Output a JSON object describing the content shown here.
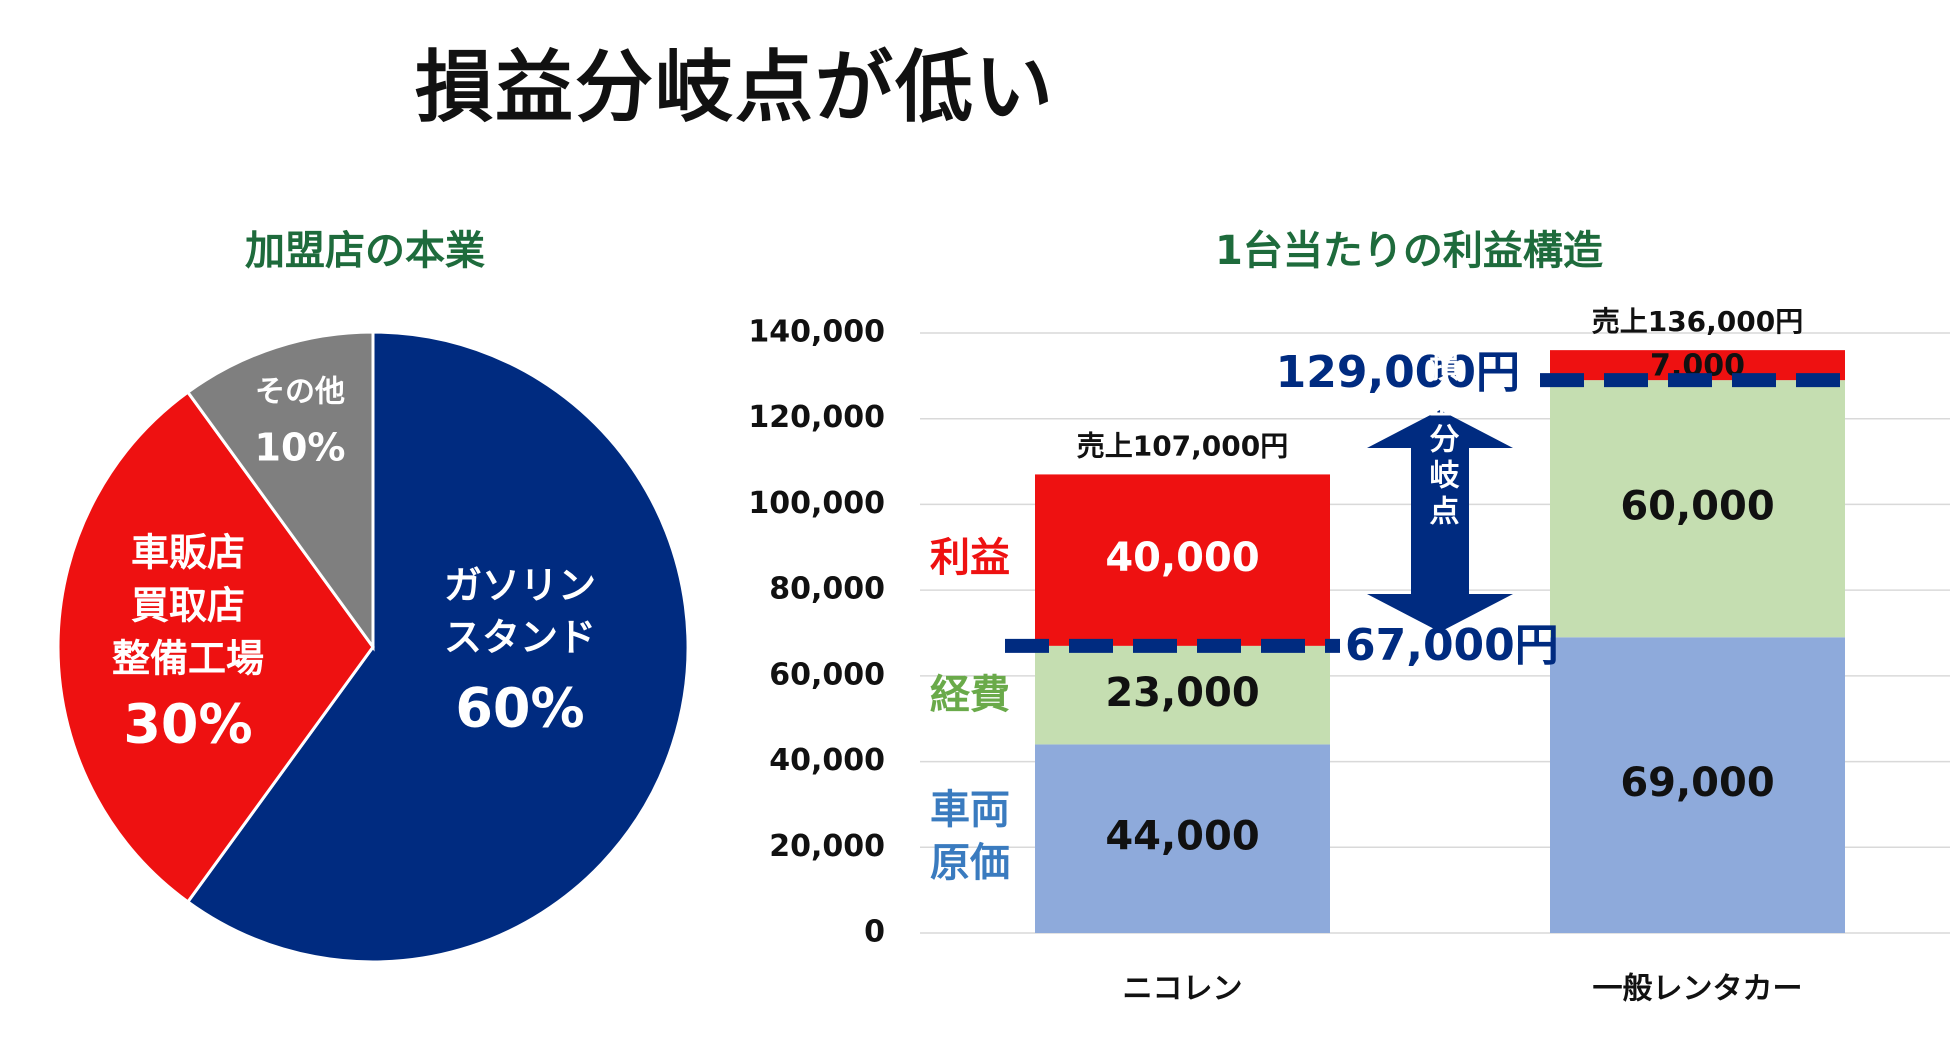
{
  "title": "損益分岐点が低い",
  "colors": {
    "navy": "#002b80",
    "red": "#ee1111",
    "gray": "#7f7f7f",
    "green": "#c5deb1",
    "blue": "#8eaadb",
    "title_green": "#1e6b3c",
    "label_green": "#6aaa4a",
    "label_blue": "#3a7bbf"
  },
  "chart_data": [
    {
      "type": "pie",
      "title": "加盟店の本業",
      "slices": [
        {
          "name_lines": [
            "ガソリン",
            "スタンド"
          ],
          "pct_label": "60%",
          "value": 60,
          "color": "#002b80"
        },
        {
          "name_lines": [
            "車販店",
            "買取店",
            "整備工場"
          ],
          "pct_label": "30%",
          "value": 30,
          "color": "#ee1111"
        },
        {
          "name_lines": [
            "その他"
          ],
          "pct_label": "10%",
          "value": 10,
          "color": "#7f7f7f"
        }
      ]
    },
    {
      "type": "bar",
      "stacked": true,
      "title": "1台当たりの利益構造",
      "categories": [
        "ニコレン",
        "一般レンタカー"
      ],
      "y_ticks": [
        0,
        20000,
        40000,
        60000,
        80000,
        100000,
        120000,
        140000
      ],
      "y_tick_labels": [
        "0",
        "20,000",
        "40,000",
        "60,000",
        "80,000",
        "100,000",
        "120,000",
        "140,000"
      ],
      "ylim": [
        0,
        140000
      ],
      "grid": true,
      "series": [
        {
          "name_lines": [
            "車両",
            "原価"
          ],
          "values": [
            44000,
            69000
          ],
          "value_labels": [
            "44,000",
            "69,000"
          ],
          "color": "#8eaadb",
          "label_color": "#3a7bbf"
        },
        {
          "name_lines": [
            "経費"
          ],
          "values": [
            23000,
            60000
          ],
          "value_labels": [
            "23,000",
            "60,000"
          ],
          "color": "#c5deb1",
          "label_color": "#6aaa4a"
        },
        {
          "name_lines": [
            "利益"
          ],
          "values": [
            40000,
            7000
          ],
          "value_labels": [
            "40,000",
            "7,000"
          ],
          "color": "#ee1111",
          "label_color": "#ee1111"
        }
      ],
      "totals": [
        107000,
        136000
      ],
      "total_labels": [
        "売上107,000円",
        "売上136,000円"
      ],
      "breakeven": [
        67000,
        129000
      ],
      "breakeven_labels": [
        "67,000円",
        "129,000円"
      ],
      "breakeven_arrow_text": "損益分岐点"
    }
  ]
}
